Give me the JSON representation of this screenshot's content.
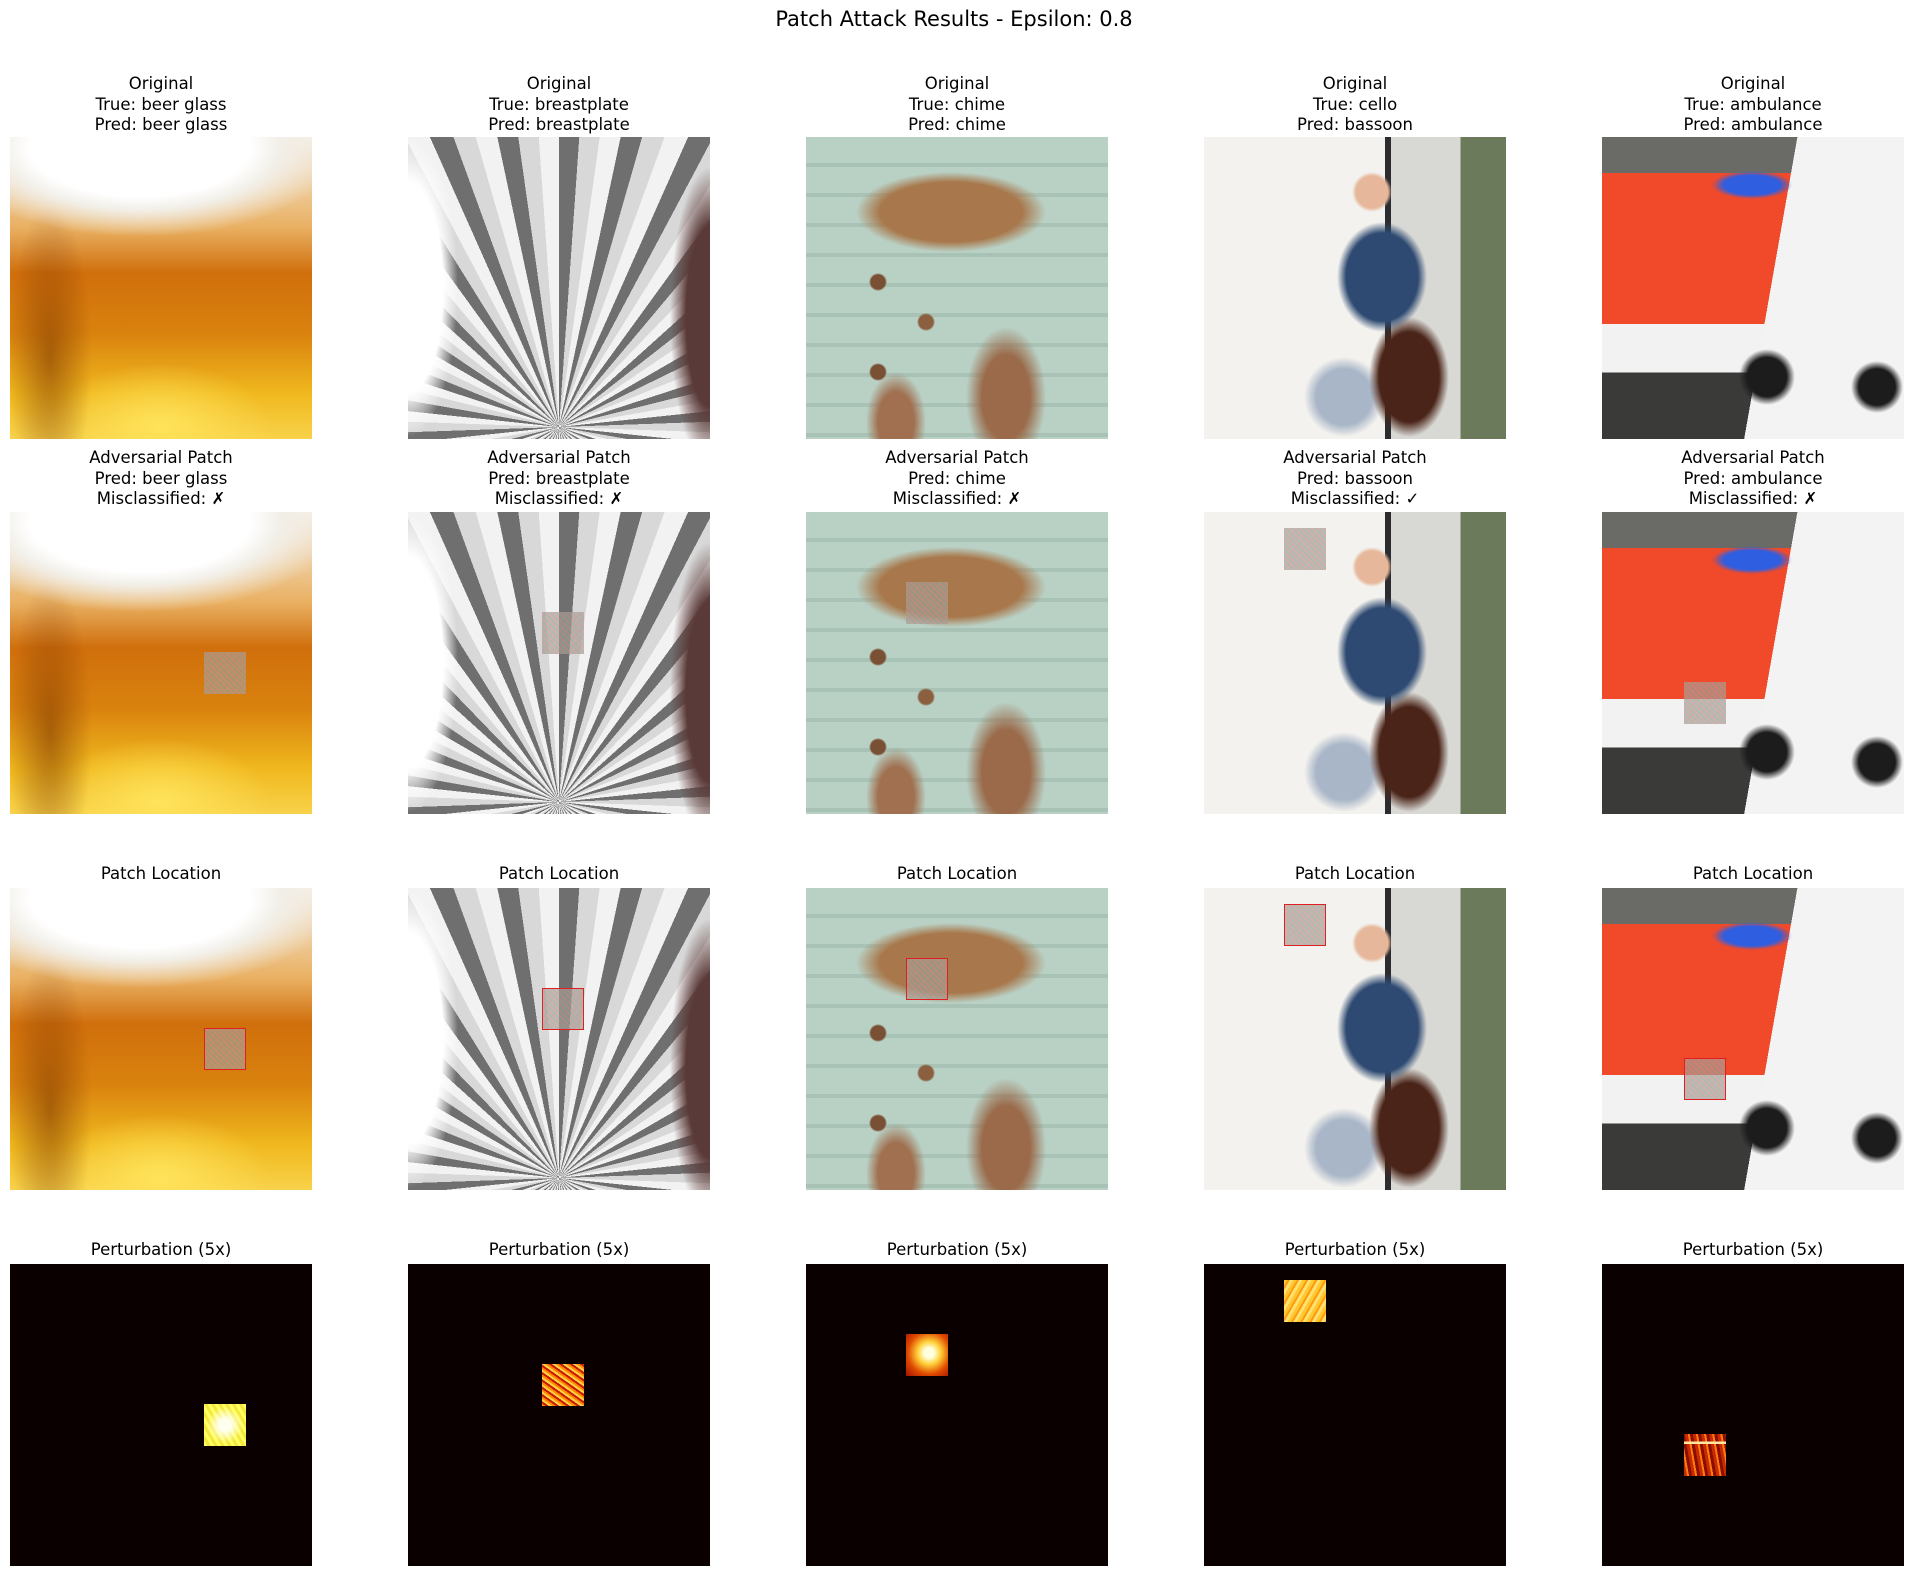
{
  "figure": {
    "title": "Patch Attack Results - Epsilon: 0.8"
  },
  "columns": [
    {
      "original": {
        "heading": "Original",
        "true_line": "True: beer glass",
        "pred_line": "Pred: beer glass"
      },
      "adversarial": {
        "heading": "Adversarial Patch",
        "pred_line": "Pred: beer glass",
        "misclassified_line": "Misclassified: ✗"
      },
      "location": {
        "heading": "Patch Location"
      },
      "perturbation": {
        "heading": "Perturbation (5x)"
      }
    },
    {
      "original": {
        "heading": "Original",
        "true_line": "True: breastplate",
        "pred_line": "Pred: breastplate"
      },
      "adversarial": {
        "heading": "Adversarial Patch",
        "pred_line": "Pred: breastplate",
        "misclassified_line": "Misclassified: ✗"
      },
      "location": {
        "heading": "Patch Location"
      },
      "perturbation": {
        "heading": "Perturbation (5x)"
      }
    },
    {
      "original": {
        "heading": "Original",
        "true_line": "True: chime",
        "pred_line": "Pred: chime"
      },
      "adversarial": {
        "heading": "Adversarial Patch",
        "pred_line": "Pred: chime",
        "misclassified_line": "Misclassified: ✗"
      },
      "location": {
        "heading": "Patch Location"
      },
      "perturbation": {
        "heading": "Perturbation (5x)"
      }
    },
    {
      "original": {
        "heading": "Original",
        "true_line": "True: cello",
        "pred_line": "Pred: bassoon"
      },
      "adversarial": {
        "heading": "Adversarial Patch",
        "pred_line": "Pred: bassoon",
        "misclassified_line": "Misclassified: ✓"
      },
      "location": {
        "heading": "Patch Location"
      },
      "perturbation": {
        "heading": "Perturbation (5x)"
      }
    },
    {
      "original": {
        "heading": "Original",
        "true_line": "True: ambulance",
        "pred_line": "Pred: ambulance"
      },
      "adversarial": {
        "heading": "Adversarial Patch",
        "pred_line": "Pred: ambulance",
        "misclassified_line": "Misclassified: ✗"
      },
      "location": {
        "heading": "Patch Location"
      },
      "perturbation": {
        "heading": "Perturbation (5x)"
      }
    }
  ],
  "colors": {
    "patch_outline": "#e02020",
    "perturbation_background": "#0b0000"
  }
}
